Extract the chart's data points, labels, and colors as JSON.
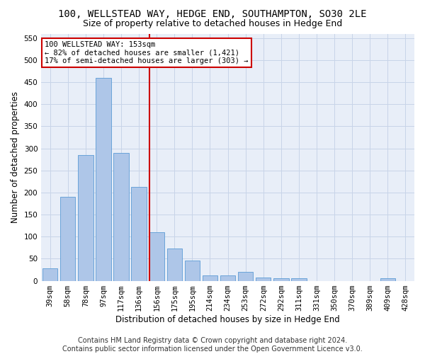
{
  "title1": "100, WELLSTEAD WAY, HEDGE END, SOUTHAMPTON, SO30 2LE",
  "title2": "Size of property relative to detached houses in Hedge End",
  "xlabel": "Distribution of detached houses by size in Hedge End",
  "ylabel": "Number of detached properties",
  "categories": [
    "39sqm",
    "58sqm",
    "78sqm",
    "97sqm",
    "117sqm",
    "136sqm",
    "156sqm",
    "175sqm",
    "195sqm",
    "214sqm",
    "234sqm",
    "253sqm",
    "272sqm",
    "292sqm",
    "311sqm",
    "331sqm",
    "350sqm",
    "370sqm",
    "389sqm",
    "409sqm",
    "428sqm"
  ],
  "values": [
    28,
    190,
    285,
    460,
    290,
    213,
    110,
    73,
    46,
    12,
    12,
    20,
    8,
    6,
    5,
    0,
    0,
    0,
    0,
    5,
    0
  ],
  "bar_color": "#aec6e8",
  "bar_edge_color": "#5b9bd5",
  "vline_index": 6,
  "vline_color": "#cc0000",
  "annotation_line1": "100 WELLSTEAD WAY: 153sqm",
  "annotation_line2": "← 82% of detached houses are smaller (1,421)",
  "annotation_line3": "17% of semi-detached houses are larger (303) →",
  "annotation_box_color": "#ffffff",
  "annotation_box_edge": "#cc0000",
  "ylim": [
    0,
    560
  ],
  "yticks": [
    0,
    50,
    100,
    150,
    200,
    250,
    300,
    350,
    400,
    450,
    500,
    550
  ],
  "footer1": "Contains HM Land Registry data © Crown copyright and database right 2024.",
  "footer2": "Contains public sector information licensed under the Open Government Licence v3.0.",
  "grid_color": "#c8d4e8",
  "background_color": "#e8eef8",
  "title1_fontsize": 10,
  "title2_fontsize": 9,
  "xlabel_fontsize": 8.5,
  "ylabel_fontsize": 8.5,
  "tick_fontsize": 7.5,
  "annotation_fontsize": 7.5,
  "footer_fontsize": 7
}
